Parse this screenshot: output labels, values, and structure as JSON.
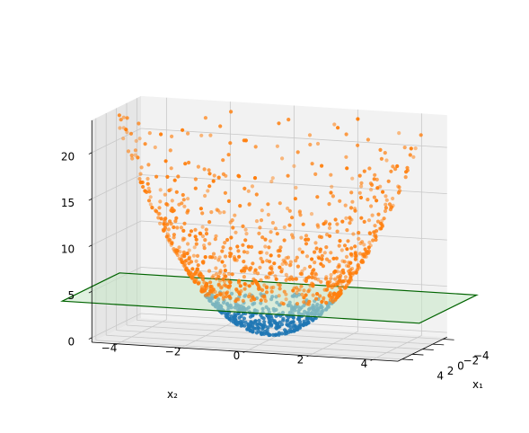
{
  "chart_data": {
    "type": "scatter",
    "projection": "3d",
    "surface": "z = x1^2 + x2^2",
    "plane_z": 4,
    "series": [
      {
        "color": "#1f77b4",
        "condition": "z < 4",
        "n_points": 420
      },
      {
        "color": "#ff7f0e",
        "condition": "z >= 4",
        "n_points": 900
      }
    ],
    "plane": {
      "z": 4,
      "fill": "#c7e7c7",
      "edge": "#006400"
    },
    "axes": {
      "x1": {
        "label": "x₁",
        "ticks": [
          "−4",
          "−2",
          "0",
          "2",
          "4"
        ],
        "lim": [
          -4.8,
          4.8
        ]
      },
      "x2": {
        "label": "x₂",
        "ticks": [
          "−4",
          "−2",
          "0",
          "2",
          "4"
        ],
        "lim": [
          -4.8,
          4.8
        ]
      },
      "z": {
        "label": "",
        "ticks": [
          "0",
          "5",
          "10",
          "15",
          "20"
        ],
        "lim": [
          -0.5,
          23.5
        ]
      }
    },
    "grid": true
  }
}
